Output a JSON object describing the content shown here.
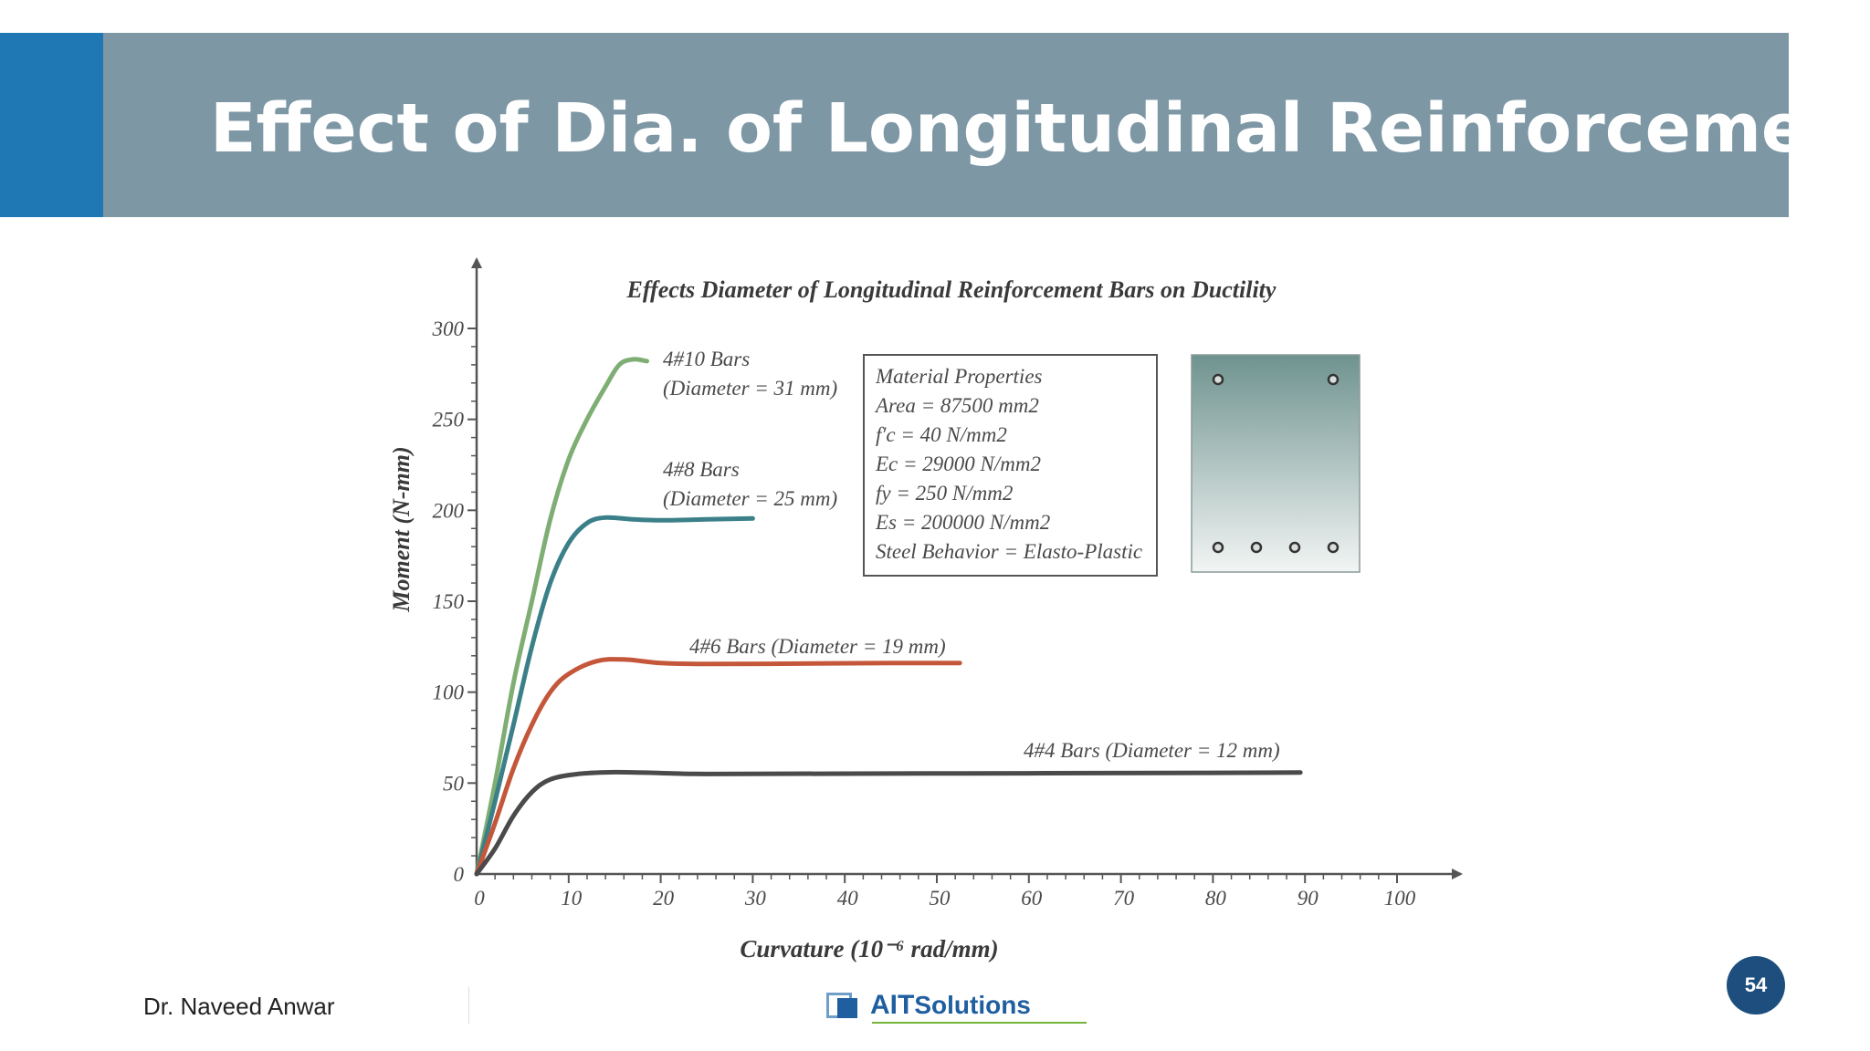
{
  "slide": {
    "title": "Effect of Dia. of Longitudinal Reinforcement",
    "author": "Dr. Naveed Anwar",
    "logo_ait": "AIT",
    "logo_solutions": "Solutions",
    "page_number": "54"
  },
  "colors": {
    "title_bar": "#7d97a5",
    "title_accent": "#1f77b4",
    "page_badge": "#1e4e7e"
  },
  "chart_data": {
    "type": "line",
    "title": "Effects Diameter of Longitudinal Reinforcement Bars on Ductility",
    "xlabel": "Curvature (10⁻⁶ rad/mm)",
    "ylabel": "Moment (N-mm)",
    "xlim": [
      0,
      100
    ],
    "ylim": [
      0,
      300
    ],
    "xticks": [
      0,
      10,
      20,
      30,
      40,
      50,
      60,
      70,
      80,
      90,
      100
    ],
    "yticks": [
      0,
      50,
      100,
      150,
      200,
      250,
      300
    ],
    "grid": false,
    "series": [
      {
        "name": "4#10 Bars (Diameter = 31 mm)",
        "label_lines": [
          "4#10 Bars",
          "(Diameter = 31 mm)"
        ],
        "color": "#7fae74",
        "points": [
          [
            0,
            0
          ],
          [
            2,
            50
          ],
          [
            4,
            105
          ],
          [
            6,
            150
          ],
          [
            8,
            195
          ],
          [
            10,
            228
          ],
          [
            12,
            250
          ],
          [
            14,
            268
          ],
          [
            15.5,
            280
          ],
          [
            17,
            283
          ],
          [
            18.5,
            282
          ]
        ]
      },
      {
        "name": "4#8 Bars (Diameter = 25 mm)",
        "label_lines": [
          "4#8 Bars",
          "(Diameter = 25 mm)"
        ],
        "color": "#3b8089",
        "points": [
          [
            0,
            0
          ],
          [
            2,
            40
          ],
          [
            4,
            82
          ],
          [
            6,
            125
          ],
          [
            8,
            160
          ],
          [
            10,
            182
          ],
          [
            12,
            193
          ],
          [
            14,
            196
          ],
          [
            17,
            195
          ],
          [
            20,
            194.5
          ],
          [
            25,
            195
          ],
          [
            30,
            195.5
          ]
        ]
      },
      {
        "name": "4#6 Bars (Diameter = 19 mm)",
        "label_lines": [
          "4#6 Bars (Diameter = 19 mm)"
        ],
        "color": "#c4573a",
        "points": [
          [
            0,
            0
          ],
          [
            2,
            28
          ],
          [
            4,
            58
          ],
          [
            6,
            82
          ],
          [
            8,
            100
          ],
          [
            10,
            110
          ],
          [
            13,
            117
          ],
          [
            16,
            118
          ],
          [
            20,
            116
          ],
          [
            25,
            115.5
          ],
          [
            35,
            115.7
          ],
          [
            45,
            116
          ],
          [
            52.5,
            116
          ]
        ]
      },
      {
        "name": "4#4 Bars (Diameter = 12 mm)",
        "label_lines": [
          "4#4 Bars (Diameter = 12 mm)"
        ],
        "color": "#4a4a4a",
        "points": [
          [
            0,
            0
          ],
          [
            2,
            14
          ],
          [
            4,
            32
          ],
          [
            6,
            45
          ],
          [
            8,
            52
          ],
          [
            11,
            55
          ],
          [
            15,
            56
          ],
          [
            20,
            55.5
          ],
          [
            25,
            55
          ],
          [
            40,
            55.2
          ],
          [
            60,
            55.4
          ],
          [
            80,
            55.6
          ],
          [
            89.5,
            55.8
          ]
        ]
      }
    ],
    "annotation_box": {
      "lines": [
        "Material Properties",
        "Area = 87500 mm2",
        "f′c = 40 N/mm2",
        "Ec = 29000 N/mm2",
        "fy  = 250 N/mm2",
        "Es = 200000 N/mm2",
        "Steel Behavior = Elasto-Plastic"
      ]
    },
    "section_diagram": {
      "top_bars": 2,
      "bottom_bars": 4
    }
  }
}
